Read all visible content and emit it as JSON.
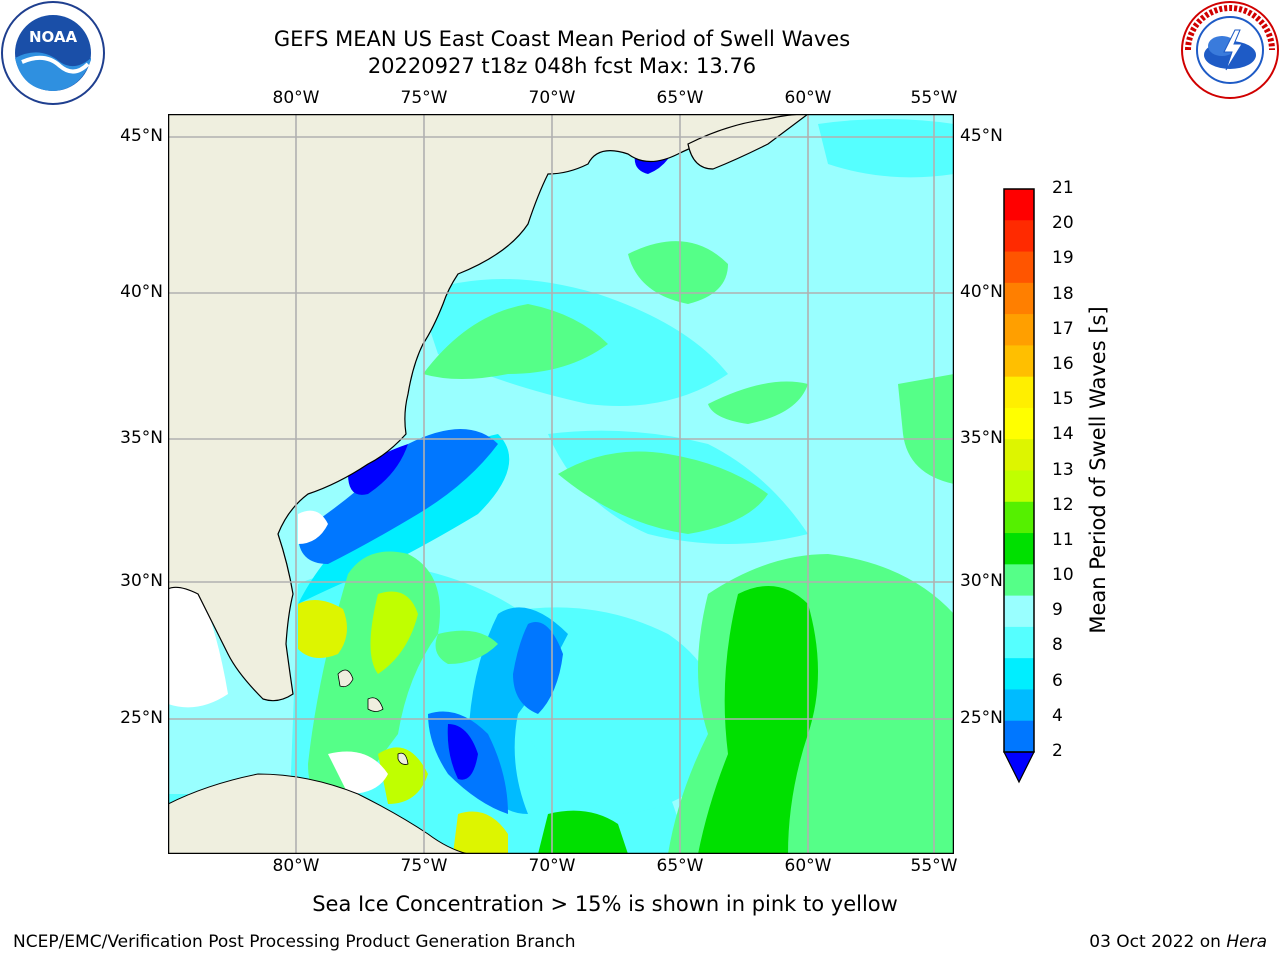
{
  "title_line1": "GEFS MEAN US East Coast Mean Period of Swell Waves",
  "title_line2": "20220927 t18z 048h fcst   Max: 13.76",
  "logos": {
    "left": {
      "icon": "noaa-logo",
      "text": "NOAA",
      "ring_text": "NATIONAL OCEANIC AND ATMOSPHERIC ADMINISTRATION · U.S. DEPARTMENT OF COMMERCE"
    },
    "right": {
      "icon": "nws-logo",
      "ring_text": "NATIONAL WEATHER SERVICE"
    }
  },
  "map": {
    "lon_labels": [
      "80°W",
      "75°W",
      "70°W",
      "65°W",
      "60°W",
      "55°W"
    ],
    "lat_labels": [
      "45°N",
      "40°N",
      "35°N",
      "30°N",
      "25°N"
    ],
    "land_color": "#efefdf",
    "grid_color": "#b0b0b0"
  },
  "colorbar": {
    "label": "Mean Period of Swell Waves [s]",
    "ticks": [
      "21",
      "20",
      "19",
      "18",
      "17",
      "16",
      "15",
      "14",
      "13",
      "12",
      "11",
      "10",
      "9",
      "8",
      "6",
      "4",
      "2"
    ],
    "colors_top_to_bottom": [
      "#ff0000",
      "#ff2a00",
      "#ff5500",
      "#ff7f00",
      "#ff9f00",
      "#ffbf00",
      "#ffef00",
      "#ffff00",
      "#ddf500",
      "#c0ff00",
      "#55f000",
      "#00e000",
      "#55ff88",
      "#99ffff",
      "#55ffff",
      "#00eeff",
      "#00bbff",
      "#0077ff"
    ],
    "under_color": "#0000ff"
  },
  "ice_note": "Sea Ice Concentration > 15% is shown in pink to yellow",
  "footer": {
    "left": "NCEP/EMC/Verification Post Processing Product Generation Branch",
    "right_date": "03 Oct 2022 on ",
    "right_machine": "Hera"
  }
}
